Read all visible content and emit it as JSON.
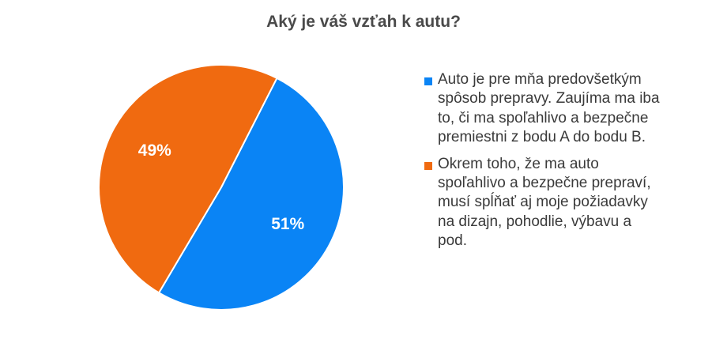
{
  "chart_data": {
    "type": "pie",
    "title": "Aký je váš vzťah k autu?",
    "slices": [
      {
        "name": "Auto je pre mňa predovšetkým spôsob prepravy. Zaujíma ma iba to, či ma spoľahlivo a bezpečne premiestni z bodu A do bodu B.",
        "value": 51,
        "label": "51%",
        "color": "#0a84f5"
      },
      {
        "name": "Okrem toho, že ma auto spoľahlivo a bezpečne prepraví, musí spĺňať aj moje požiadavky na dizajn, pohodlie, výbavu a pod.",
        "value": 49,
        "label": "49%",
        "color": "#f06a10"
      }
    ],
    "legend_position": "right"
  }
}
